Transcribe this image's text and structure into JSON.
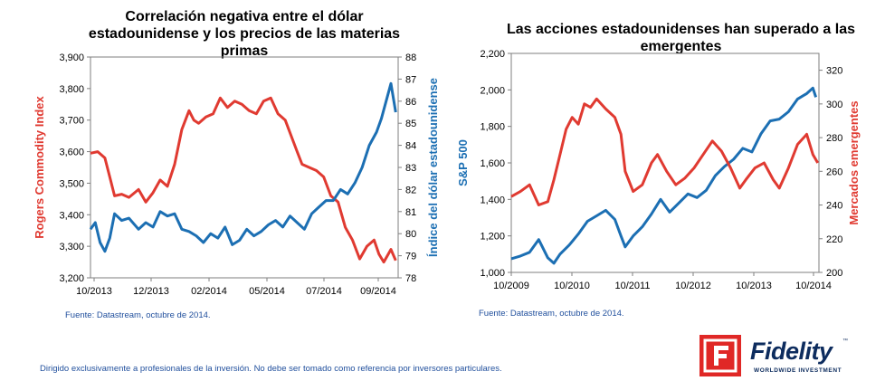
{
  "footer": {
    "disclaimer": "Dirigido exclusivamente a profesionales de la inversión. No debe ser tomado como referencia por inversores particulares.",
    "logo_name": "Fidelity",
    "logo_tagline": "WORLDWIDE INVESTMENT",
    "logo_tm": "™"
  },
  "chart_data": [
    {
      "type": "line",
      "title": "Correlación negativa entre el dólar estadounidense y los precios de las materias primas",
      "source": "Fuente: Datastream, octubre de 2014.",
      "x_ticks": [
        "10/2013",
        "12/2013",
        "02/2014",
        "05/2014",
        "07/2014",
        "09/2014"
      ],
      "x_range": [
        0,
        12.8
      ],
      "y_left": {
        "label": "Rogers Commodity Index",
        "ticks": [
          "3,200",
          "3,300",
          "3,400",
          "3,500",
          "3,600",
          "3,700",
          "3,800",
          "3,900"
        ],
        "range": [
          3200,
          3900
        ]
      },
      "y_right": {
        "label": "Índice del dólar estadounidense",
        "ticks": [
          "78",
          "79",
          "80",
          "81",
          "82",
          "83",
          "84",
          "85",
          "86",
          "87",
          "88"
        ],
        "range": [
          78,
          88
        ]
      },
      "series": [
        {
          "name": "Rogers Commodity Index",
          "axis": "left",
          "color": "#e03a31",
          "x": [
            0,
            0.3,
            0.6,
            0.8,
            1.0,
            1.3,
            1.6,
            2.0,
            2.3,
            2.6,
            2.9,
            3.2,
            3.5,
            3.8,
            4.1,
            4.3,
            4.5,
            4.8,
            5.1,
            5.4,
            5.7,
            6.0,
            6.3,
            6.6,
            6.9,
            7.2,
            7.5,
            7.8,
            8.1,
            8.4,
            8.6,
            8.8,
            9.1,
            9.4,
            9.7,
            10.0,
            10.3,
            10.6,
            10.9,
            11.2,
            11.5,
            11.8,
            12.0,
            12.2,
            12.5,
            12.7
          ],
          "values": [
            3595,
            3600,
            3580,
            3520,
            3460,
            3465,
            3455,
            3480,
            3440,
            3470,
            3510,
            3490,
            3560,
            3670,
            3730,
            3700,
            3690,
            3710,
            3720,
            3770,
            3740,
            3760,
            3750,
            3730,
            3720,
            3760,
            3770,
            3720,
            3700,
            3640,
            3600,
            3560,
            3550,
            3540,
            3520,
            3460,
            3440,
            3360,
            3320,
            3260,
            3300,
            3320,
            3275,
            3250,
            3290,
            3255
          ]
        },
        {
          "name": "Índice del dólar estadounidense",
          "axis": "right",
          "color": "#1c6fb3",
          "x": [
            0,
            0.2,
            0.4,
            0.6,
            0.8,
            1.0,
            1.3,
            1.6,
            2.0,
            2.3,
            2.6,
            2.9,
            3.2,
            3.5,
            3.8,
            4.1,
            4.4,
            4.7,
            5.0,
            5.3,
            5.6,
            5.9,
            6.2,
            6.5,
            6.8,
            7.1,
            7.4,
            7.7,
            8.0,
            8.3,
            8.6,
            8.9,
            9.2,
            9.5,
            9.8,
            10.1,
            10.4,
            10.7,
            11.0,
            11.3,
            11.6,
            11.9,
            12.1,
            12.3,
            12.5,
            12.7
          ],
          "values": [
            80.2,
            80.5,
            79.6,
            79.2,
            79.8,
            80.9,
            80.6,
            80.7,
            80.2,
            80.5,
            80.3,
            81.0,
            80.8,
            80.9,
            80.2,
            80.1,
            79.9,
            79.6,
            80.0,
            79.8,
            80.3,
            79.5,
            79.7,
            80.2,
            79.9,
            80.1,
            80.4,
            80.6,
            80.3,
            80.8,
            80.5,
            80.2,
            80.9,
            81.2,
            81.5,
            81.5,
            82.0,
            81.8,
            82.3,
            83.0,
            84.0,
            84.6,
            85.2,
            86.0,
            86.8,
            85.5
          ]
        }
      ]
    },
    {
      "type": "line",
      "title": "Las acciones estadounidenses han superado a las emergentes",
      "source": "Fuente: Datastream, octubre de 2014.",
      "x_ticks": [
        "10/2009",
        "10/2010",
        "10/2011",
        "10/2012",
        "10/2013",
        "10/2014"
      ],
      "x_range": [
        2009.75,
        2014.8
      ],
      "y_left": {
        "label": "S&P 500",
        "ticks": [
          "1,000",
          "1,200",
          "1,400",
          "1,600",
          "1,800",
          "2,000",
          "2,200"
        ],
        "range": [
          1000,
          2200
        ]
      },
      "y_right": {
        "label": "Mercados emergentes",
        "ticks": [
          "200",
          "220",
          "240",
          "260",
          "280",
          "300",
          "320"
        ],
        "range": [
          200,
          330
        ]
      },
      "series": [
        {
          "name": "S&P 500",
          "axis": "left",
          "color": "#1c6fb3",
          "x": [
            2009.75,
            2009.9,
            2010.05,
            2010.2,
            2010.35,
            2010.45,
            2010.55,
            2010.7,
            2010.85,
            2011.0,
            2011.15,
            2011.3,
            2011.45,
            2011.55,
            2011.62,
            2011.75,
            2011.9,
            2012.05,
            2012.2,
            2012.35,
            2012.5,
            2012.65,
            2012.8,
            2012.95,
            2013.1,
            2013.25,
            2013.4,
            2013.55,
            2013.7,
            2013.85,
            2014.0,
            2014.15,
            2014.3,
            2014.45,
            2014.6,
            2014.7,
            2014.75
          ],
          "values": [
            1075,
            1090,
            1110,
            1180,
            1080,
            1050,
            1100,
            1150,
            1210,
            1280,
            1310,
            1340,
            1290,
            1200,
            1140,
            1200,
            1250,
            1320,
            1400,
            1330,
            1380,
            1430,
            1410,
            1450,
            1530,
            1580,
            1620,
            1680,
            1660,
            1760,
            1830,
            1840,
            1880,
            1950,
            1980,
            2010,
            1960
          ]
        },
        {
          "name": "Mercados emergentes",
          "axis": "right",
          "color": "#e03a31",
          "x": [
            2009.75,
            2009.9,
            2010.05,
            2010.2,
            2010.35,
            2010.45,
            2010.55,
            2010.65,
            2010.75,
            2010.85,
            2010.95,
            2011.05,
            2011.15,
            2011.3,
            2011.45,
            2011.55,
            2011.62,
            2011.75,
            2011.9,
            2012.05,
            2012.15,
            2012.3,
            2012.45,
            2012.6,
            2012.75,
            2012.9,
            2013.05,
            2013.2,
            2013.35,
            2013.5,
            2013.6,
            2013.75,
            2013.9,
            2014.05,
            2014.15,
            2014.3,
            2014.45,
            2014.6,
            2014.7,
            2014.78
          ],
          "values": [
            245,
            248,
            252,
            240,
            242,
            255,
            270,
            285,
            292,
            288,
            300,
            298,
            303,
            297,
            292,
            282,
            260,
            248,
            252,
            265,
            270,
            260,
            252,
            256,
            262,
            270,
            278,
            272,
            262,
            250,
            255,
            262,
            265,
            255,
            250,
            262,
            276,
            282,
            270,
            265
          ]
        }
      ]
    }
  ]
}
